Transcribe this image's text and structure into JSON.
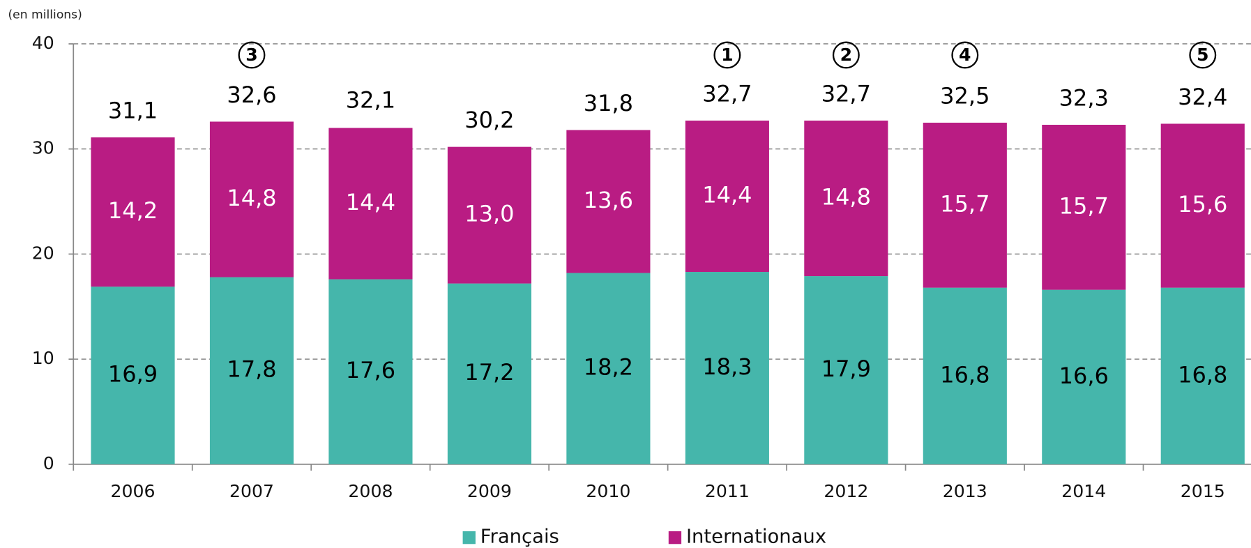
{
  "chart_data": {
    "type": "stacked_bar",
    "y_unit": "(en millions)",
    "categories": [
      "2006",
      "2007",
      "2008",
      "2009",
      "2010",
      "2011",
      "2012",
      "2013",
      "2014",
      "2015"
    ],
    "series": [
      {
        "name": "Français",
        "color": "#45b6ab",
        "values": [
          16.9,
          17.8,
          17.6,
          17.2,
          18.2,
          18.3,
          17.9,
          16.8,
          16.6,
          16.8
        ],
        "value_labels": [
          "16,9",
          "17,8",
          "17,6",
          "17,2",
          "18,2",
          "18,3",
          "17,9",
          "16,8",
          "16,6",
          "16,8"
        ]
      },
      {
        "name": "Internationaux",
        "color": "#b91c83",
        "values": [
          14.2,
          14.8,
          14.4,
          13.0,
          13.6,
          14.4,
          14.8,
          15.7,
          15.7,
          15.6
        ],
        "value_labels": [
          "14,2",
          "14,8",
          "14,4",
          "13,0",
          "13,6",
          "14,4",
          "14,8",
          "15,7",
          "15,7",
          "15,6"
        ]
      }
    ],
    "totals": {
      "values": [
        31.1,
        32.6,
        32.1,
        30.2,
        31.8,
        32.7,
        32.7,
        32.5,
        32.3,
        32.4
      ],
      "value_labels": [
        "31,1",
        "32,6",
        "32,1",
        "30,2",
        "31,8",
        "32,7",
        "32,7",
        "32,5",
        "32,3",
        "32,4"
      ]
    },
    "annotations": [
      {
        "category": "2007",
        "text": "3"
      },
      {
        "category": "2011",
        "text": "1"
      },
      {
        "category": "2012",
        "text": "2"
      },
      {
        "category": "2013",
        "text": "4"
      },
      {
        "category": "2015",
        "text": "5"
      }
    ],
    "ylim": [
      0,
      40
    ],
    "yticks": [
      0,
      10,
      20,
      30,
      40
    ],
    "grid": true,
    "legend": "bottom"
  }
}
